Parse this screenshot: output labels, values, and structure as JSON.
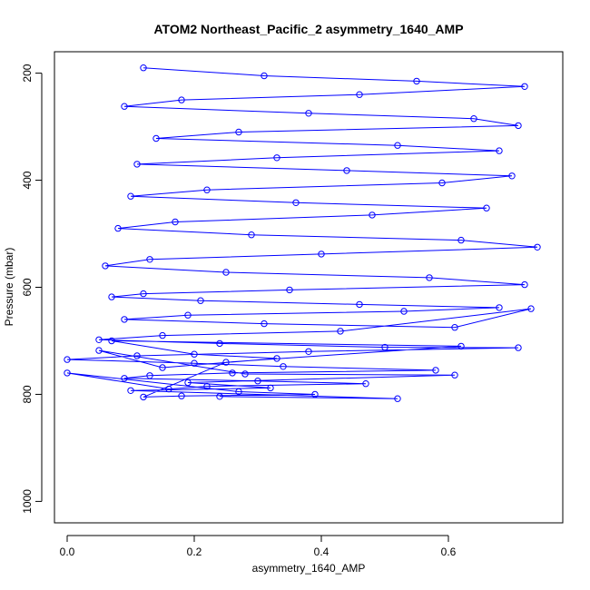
{
  "chart_data": {
    "type": "line",
    "title": "ATOM2 Northeast_Pacific_2 asymmetry_1640_AMP",
    "xlabel": "asymmetry_1640_AMP",
    "ylabel": "Pressure (mbar)",
    "xlim": [
      -0.02,
      0.78
    ],
    "ylim": [
      1040,
      160
    ],
    "y_reversed": true,
    "xticks": [
      0.0,
      0.2,
      0.4,
      0.6
    ],
    "xtick_labels": [
      "0.0",
      "0.2",
      "0.4",
      "0.6"
    ],
    "yticks": [
      200,
      400,
      600,
      800,
      1000
    ],
    "ytick_labels": [
      "200",
      "400",
      "600",
      "800",
      "1000"
    ],
    "marker": "open-circle",
    "color": "#0000ff",
    "grid": false,
    "series": [
      {
        "x": [
          0.12,
          0.31,
          0.55,
          0.72,
          0.46,
          0.18,
          0.09,
          0.38,
          0.64,
          0.71,
          0.27,
          0.14,
          0.52,
          0.68,
          0.33,
          0.11,
          0.44,
          0.7,
          0.59,
          0.22,
          0.1,
          0.36,
          0.66,
          0.48,
          0.17,
          0.08,
          0.29,
          0.62,
          0.74,
          0.4,
          0.13,
          0.06,
          0.25,
          0.57,
          0.72,
          0.35,
          0.12,
          0.07,
          0.21,
          0.46,
          0.68,
          0.53,
          0.19,
          0.09,
          0.31,
          0.61,
          0.73,
          0.43,
          0.15,
          0.05,
          0.24,
          0.5,
          0.71,
          0.38,
          0.11,
          0.0,
          0.2,
          0.34,
          0.58,
          0.26,
          0.13,
          0.09,
          0.3,
          0.47,
          0.22,
          0.16,
          0.0,
          0.27,
          0.39,
          0.18,
          0.12,
          0.25,
          0.62,
          0.07,
          0.2,
          0.33,
          0.15,
          0.05,
          0.28,
          0.61,
          0.19,
          0.32,
          0.1,
          0.52,
          0.24
        ],
        "y": [
          190,
          205,
          215,
          225,
          240,
          250,
          262,
          275,
          285,
          298,
          310,
          322,
          335,
          345,
          358,
          370,
          382,
          392,
          405,
          418,
          430,
          442,
          452,
          465,
          478,
          490,
          502,
          512,
          525,
          538,
          548,
          560,
          572,
          582,
          595,
          605,
          612,
          618,
          625,
          632,
          638,
          645,
          652,
          660,
          668,
          675,
          640,
          682,
          690,
          698,
          705,
          712,
          713,
          720,
          728,
          735,
          742,
          748,
          755,
          760,
          765,
          770,
          775,
          780,
          785,
          790,
          760,
          795,
          800,
          803,
          805,
          740,
          710,
          700,
          725,
          733,
          750,
          718,
          762,
          764,
          778,
          788,
          793,
          808,
          804
        ]
      }
    ]
  }
}
